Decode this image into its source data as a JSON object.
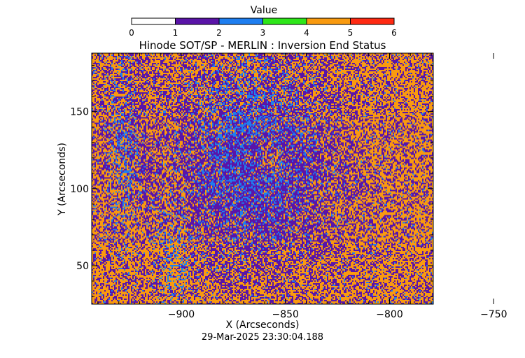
{
  "chart_data": {
    "type": "heatmap",
    "title": "Hinode SOT/SP - MERLIN : Inversion End Status",
    "xlabel": "X (Arcseconds)",
    "ylabel": "Y (Arcseconds)",
    "footer": "29-Mar-2025 23:30:04.188",
    "xlim": [
      -943,
      -779
    ],
    "ylim": [
      25,
      188
    ],
    "x_ticks": [
      -900,
      -850,
      -800,
      -750
    ],
    "x_tick_labels": [
      "−900",
      "−850",
      "−800",
      "−750"
    ],
    "y_ticks": [
      50,
      100,
      150
    ],
    "y_tick_labels": [
      "50",
      "100",
      "150"
    ],
    "colorbar": {
      "title": "Value",
      "range": [
        0,
        6
      ],
      "tick_labels": [
        "0",
        "1",
        "2",
        "3",
        "4",
        "5",
        "6"
      ],
      "segments": [
        {
          "from": 0,
          "to": 1,
          "color": "#ffffff"
        },
        {
          "from": 1,
          "to": 2,
          "color": "#5a14a8"
        },
        {
          "from": 2,
          "to": 3,
          "color": "#1e7ef0"
        },
        {
          "from": 3,
          "to": 4,
          "color": "#2ee619"
        },
        {
          "from": 4,
          "to": 5,
          "color": "#f99a0f"
        },
        {
          "from": 5,
          "to": 6,
          "color": "#ff2a12"
        }
      ]
    },
    "observed_values": [
      {
        "value": 1,
        "color": "#5a14a8",
        "description_value": "dominant in center"
      },
      {
        "value": 2,
        "color": "#1e7ef0",
        "description_value": "patches near center and left"
      },
      {
        "value": 4,
        "color": "#f99a0f",
        "description_value": "dominant near edges"
      }
    ]
  }
}
